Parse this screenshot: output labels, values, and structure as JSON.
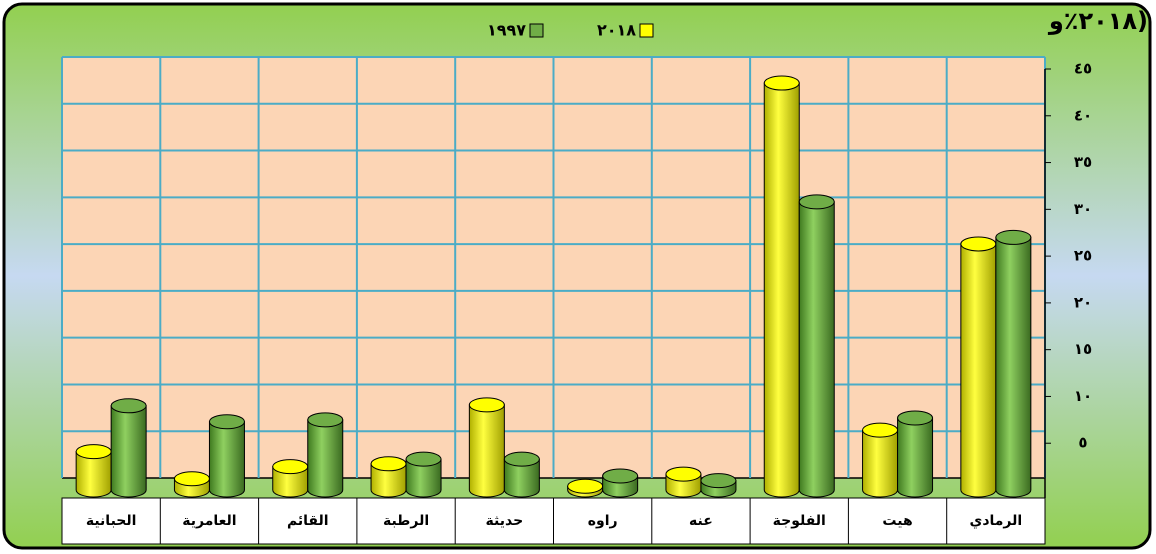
{
  "chart_data": {
    "type": "bar",
    "title": "(٢٠١٨٪و",
    "categories": [
      "الرمادي",
      "هيت",
      "الفلوجة",
      "عنه",
      "راوه",
      "حديثة",
      "الرطبة",
      "القائم",
      "العامرية",
      "الحبانية"
    ],
    "series": [
      {
        "name": "٢٠١٨",
        "color": "#ffff00",
        "values": [
          26.3,
          6.4,
          43.5,
          1.7,
          0.4,
          9.1,
          2.8,
          2.5,
          1.2,
          4.1
        ]
      },
      {
        "name": "١٩٩٧",
        "color": "#70ad47",
        "values": [
          27,
          7.7,
          30.8,
          1,
          1.5,
          3.3,
          3.3,
          7.5,
          7.3,
          9
        ]
      }
    ],
    "ylim": [
      0,
      45
    ],
    "yticks": [
      {
        "value": 5,
        "label": "٥"
      },
      {
        "value": 10,
        "label": "١٠"
      },
      {
        "value": 15,
        "label": "١٥"
      },
      {
        "value": 20,
        "label": "٢٠"
      },
      {
        "value": 25,
        "label": "٢٥"
      },
      {
        "value": 30,
        "label": "٣٠"
      },
      {
        "value": 35,
        "label": "٣٥"
      },
      {
        "value": 40,
        "label": "٤٠"
      },
      {
        "value": 45,
        "label": "٤٥"
      }
    ],
    "grid": true
  }
}
